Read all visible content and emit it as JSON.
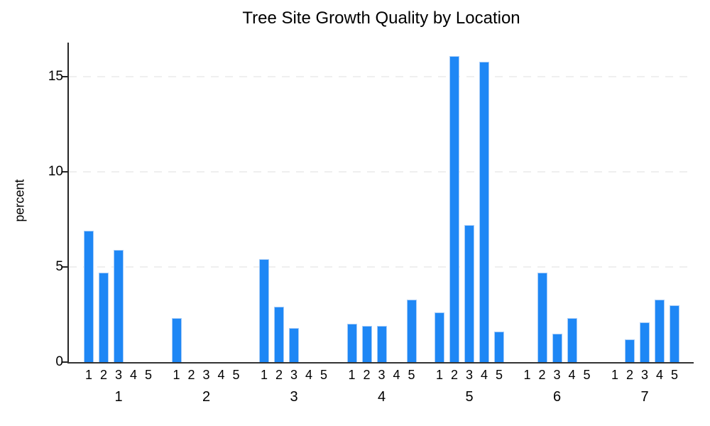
{
  "chart_data": {
    "type": "bar",
    "title": "Tree Site Growth Quality by Location",
    "xlabel": "",
    "ylabel": "percent",
    "ylim": [
      0,
      16.8
    ],
    "yticks": [
      0,
      5,
      10,
      15
    ],
    "grid": "horizontal-dashed",
    "legend": "none",
    "bar_color": "#1e87f5",
    "bar_edge_color": "#a6ccf8",
    "category_labels": [
      "1",
      "2",
      "3",
      "4",
      "5"
    ],
    "groups": [
      {
        "label": "1",
        "values": [
          6.9,
          4.7,
          5.9,
          0,
          0
        ]
      },
      {
        "label": "2",
        "values": [
          2.3,
          0,
          0,
          0,
          0
        ]
      },
      {
        "label": "3",
        "values": [
          5.4,
          2.9,
          1.8,
          0,
          0
        ]
      },
      {
        "label": "4",
        "values": [
          2.0,
          1.9,
          1.9,
          0,
          3.3
        ]
      },
      {
        "label": "5",
        "values": [
          2.6,
          16.1,
          7.2,
          15.8,
          1.6
        ]
      },
      {
        "label": "6",
        "values": [
          0,
          4.7,
          1.5,
          2.3,
          0
        ]
      },
      {
        "label": "7",
        "values": [
          0,
          1.2,
          2.1,
          3.3,
          3.0
        ]
      }
    ]
  }
}
